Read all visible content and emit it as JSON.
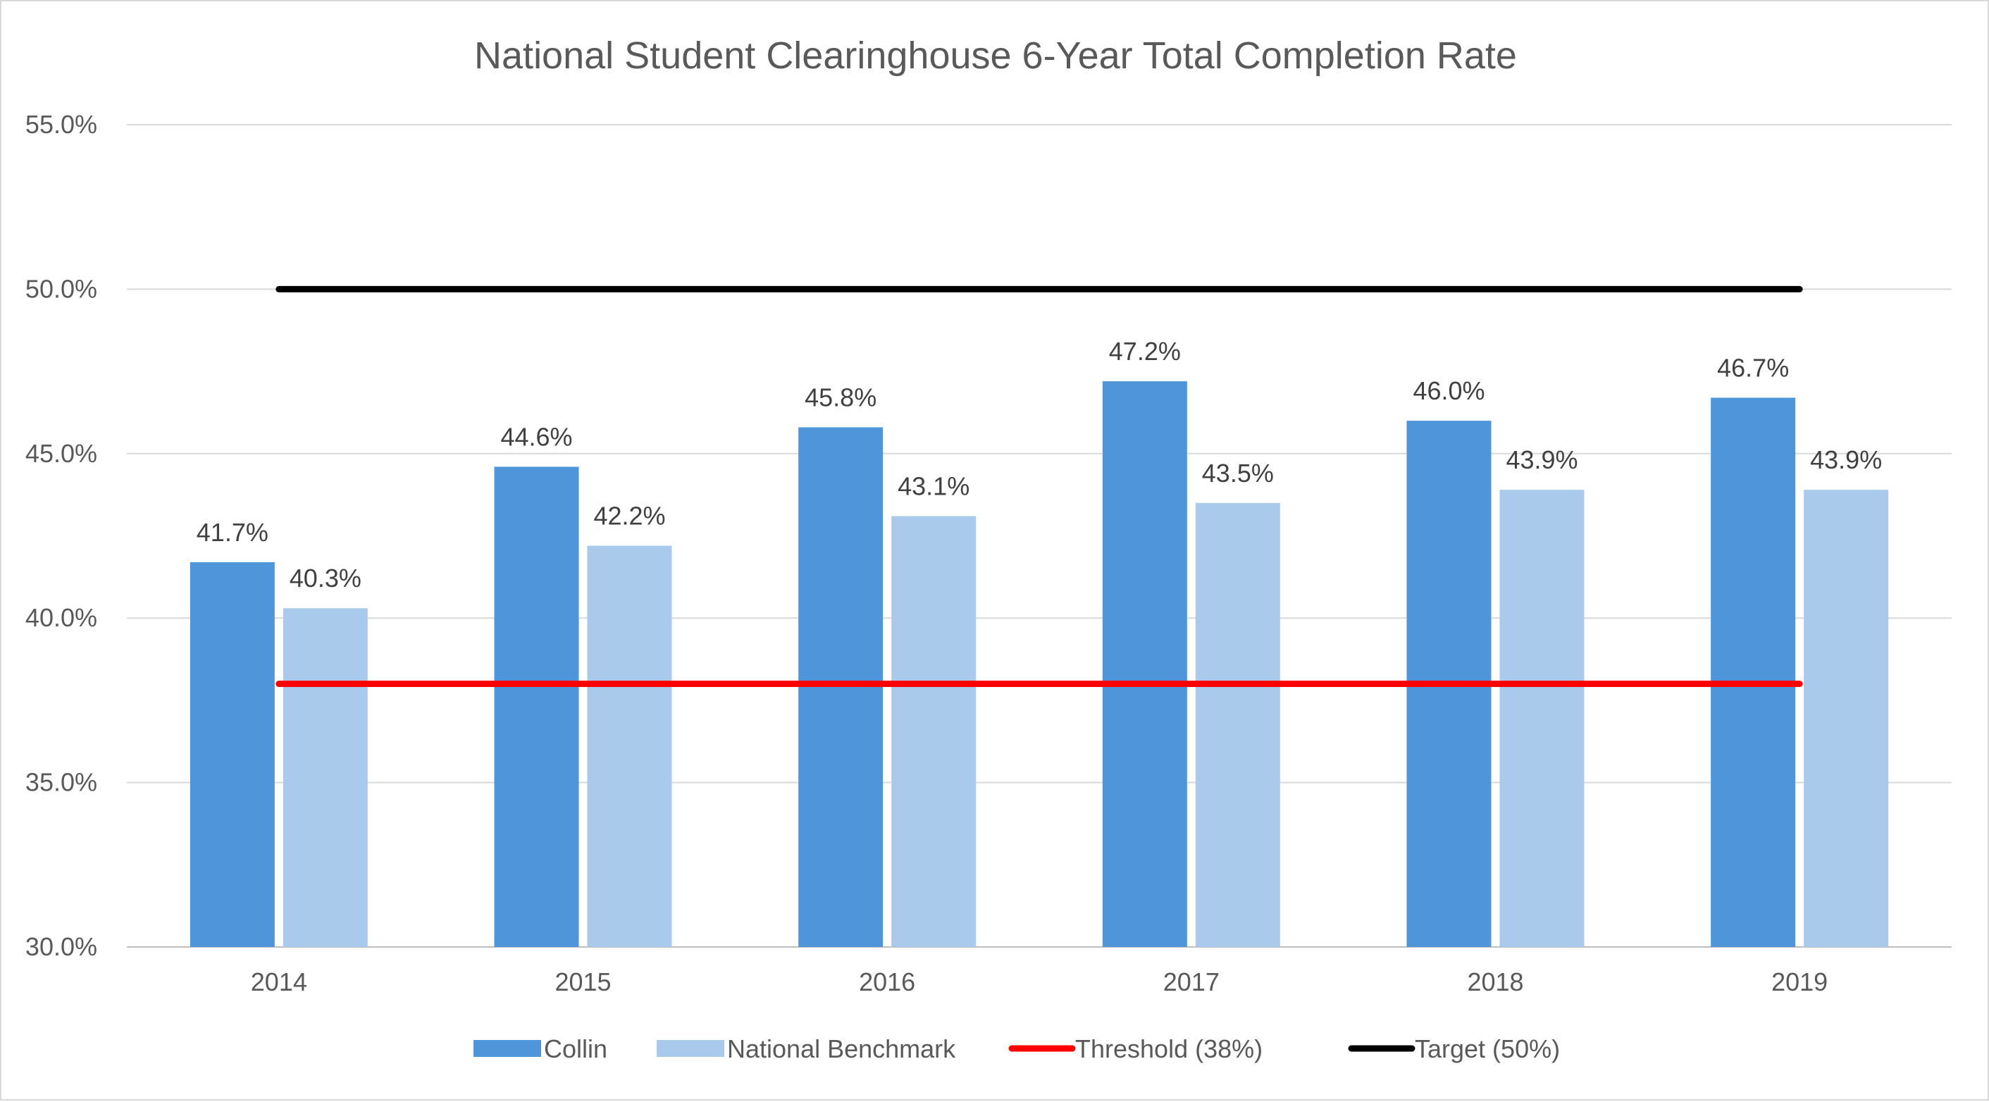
{
  "chart_data": {
    "type": "bar",
    "title": "National Student Clearinghouse 6-Year Total Completion Rate",
    "xlabel": "",
    "ylabel": "",
    "categories": [
      "2014",
      "2015",
      "2016",
      "2017",
      "2018",
      "2019"
    ],
    "series": [
      {
        "name": "Collin",
        "kind": "bar",
        "color": "#4f95da",
        "values": [
          41.7,
          44.6,
          45.8,
          47.2,
          46.0,
          46.7
        ],
        "labels": [
          "41.7%",
          "44.6%",
          "45.8%",
          "47.2%",
          "46.0%",
          "46.7%"
        ]
      },
      {
        "name": "National Benchmark",
        "kind": "bar",
        "color": "#a9caeb",
        "values": [
          40.3,
          42.2,
          43.1,
          43.5,
          43.9,
          43.9
        ],
        "labels": [
          "40.3%",
          "42.2%",
          "43.1%",
          "43.5%",
          "43.9%",
          "43.9%"
        ]
      },
      {
        "name": "Threshold (38%)",
        "kind": "line",
        "color": "#ff0000",
        "values": [
          38,
          38,
          38,
          38,
          38,
          38
        ]
      },
      {
        "name": "Target (50%)",
        "kind": "line",
        "color": "#000000",
        "values": [
          50,
          50,
          50,
          50,
          50,
          50
        ]
      }
    ],
    "ylim": [
      30,
      55
    ],
    "yticks": [
      30,
      35,
      40,
      45,
      50,
      55
    ],
    "ytick_labels": [
      "30.0%",
      "35.0%",
      "40.0%",
      "45.0%",
      "50.0%",
      "55.0%"
    ],
    "grid": true,
    "legend_position": "bottom"
  }
}
